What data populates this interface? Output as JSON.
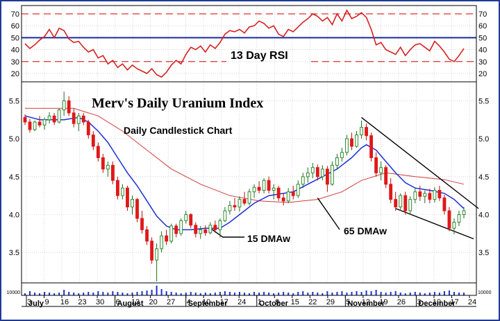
{
  "chart_data": {
    "type": "candlestick",
    "title": "Merv's Daily Uranium Index",
    "subtitle": "Daily Candlestick Chart",
    "annotations": [
      "15 DMAw",
      "65 DMAw"
    ],
    "price_axis": {
      "ticks": [
        3.5,
        4.0,
        4.5,
        5.0,
        5.5
      ],
      "tick_labels": [
        "3.5",
        "4.0",
        "4.5",
        "5.0",
        "5.5"
      ],
      "range": [
        3.1,
        5.75
      ]
    },
    "x_axis": {
      "day_labels": [
        "3",
        "9",
        "16",
        "23",
        "30",
        "6",
        "13",
        "20",
        "27",
        "4",
        "10",
        "17",
        "24",
        "1",
        "9",
        "15",
        "22",
        "29",
        "5",
        "12",
        "19",
        "26",
        "3",
        "10",
        "17",
        "24"
      ],
      "months": [
        "July",
        "August",
        "September",
        "October",
        "November",
        "December"
      ],
      "month_start_index": [
        0,
        5,
        9,
        13,
        18,
        22
      ]
    },
    "rsi": {
      "label": "13 Day RSI",
      "ticks": [
        20,
        30,
        40,
        50,
        60,
        70
      ],
      "tick_labels": [
        "20",
        "30",
        "40",
        "50",
        "60",
        "70"
      ],
      "range": [
        13,
        77
      ],
      "overbought": 70,
      "oversold": 30,
      "midline": 50,
      "points": [
        [
          0,
          45
        ],
        [
          1,
          41
        ],
        [
          2,
          44
        ],
        [
          3,
          48
        ],
        [
          4,
          51
        ],
        [
          5,
          57
        ],
        [
          6,
          50
        ],
        [
          7,
          58
        ],
        [
          8,
          56
        ],
        [
          9,
          49
        ],
        [
          10,
          46
        ],
        [
          11,
          47
        ],
        [
          12,
          42
        ],
        [
          13,
          38
        ],
        [
          14,
          40
        ],
        [
          15,
          33
        ],
        [
          16,
          35
        ],
        [
          17,
          28
        ],
        [
          18,
          31
        ],
        [
          19,
          25
        ],
        [
          20,
          28
        ],
        [
          21,
          23
        ],
        [
          22,
          27
        ],
        [
          23,
          24
        ],
        [
          24,
          22
        ],
        [
          25,
          20
        ],
        [
          26,
          24
        ],
        [
          27,
          19
        ],
        [
          28,
          17
        ],
        [
          29,
          21
        ],
        [
          30,
          27
        ],
        [
          31,
          31
        ],
        [
          32,
          28
        ],
        [
          33,
          36
        ],
        [
          34,
          42
        ],
        [
          35,
          40
        ],
        [
          36,
          43
        ],
        [
          37,
          38
        ],
        [
          38,
          44
        ],
        [
          39,
          41
        ],
        [
          40,
          46
        ],
        [
          41,
          53
        ],
        [
          42,
          56
        ],
        [
          43,
          55
        ],
        [
          44,
          57
        ],
        [
          45,
          54
        ],
        [
          46,
          59
        ],
        [
          47,
          60
        ],
        [
          48,
          64
        ],
        [
          49,
          62
        ],
        [
          50,
          58
        ],
        [
          51,
          60
        ],
        [
          52,
          53
        ],
        [
          53,
          51
        ],
        [
          54,
          57
        ],
        [
          55,
          55
        ],
        [
          56,
          59
        ],
        [
          57,
          63
        ],
        [
          58,
          66
        ],
        [
          59,
          70
        ],
        [
          60,
          68
        ],
        [
          61,
          64
        ],
        [
          62,
          67
        ],
        [
          63,
          61
        ],
        [
          64,
          70
        ],
        [
          65,
          64
        ],
        [
          66,
          73
        ],
        [
          67,
          66
        ],
        [
          68,
          68
        ],
        [
          69,
          71
        ],
        [
          70,
          67
        ],
        [
          71,
          57
        ],
        [
          72,
          44
        ],
        [
          73,
          46
        ],
        [
          74,
          40
        ],
        [
          75,
          38
        ],
        [
          76,
          36
        ],
        [
          77,
          42
        ],
        [
          78,
          35
        ],
        [
          79,
          40
        ],
        [
          80,
          44
        ],
        [
          81,
          45
        ],
        [
          82,
          42
        ],
        [
          83,
          39
        ],
        [
          84,
          47
        ],
        [
          85,
          43
        ],
        [
          86,
          38
        ],
        [
          87,
          32
        ],
        [
          88,
          30
        ],
        [
          89,
          35
        ],
        [
          90,
          41
        ]
      ]
    },
    "volume": {
      "tick_labels": [
        "10000"
      ]
    },
    "candles": [
      [
        5.28,
        5.32,
        5.18,
        5.22
      ],
      [
        5.22,
        5.26,
        5.08,
        5.12
      ],
      [
        5.12,
        5.24,
        5.1,
        5.22
      ],
      [
        5.22,
        5.3,
        5.15,
        5.18
      ],
      [
        5.18,
        5.28,
        5.12,
        5.25
      ],
      [
        5.25,
        5.35,
        5.2,
        5.3
      ],
      [
        5.3,
        5.34,
        5.18,
        5.22
      ],
      [
        5.22,
        5.4,
        5.2,
        5.38
      ],
      [
        5.38,
        5.62,
        5.3,
        5.5
      ],
      [
        5.5,
        5.56,
        5.3,
        5.34
      ],
      [
        5.34,
        5.4,
        5.15,
        5.2
      ],
      [
        5.2,
        5.34,
        5.1,
        5.3
      ],
      [
        5.3,
        5.34,
        5.18,
        5.22
      ],
      [
        5.22,
        5.25,
        5.0,
        5.05
      ],
      [
        5.05,
        5.1,
        4.85,
        4.9
      ],
      [
        4.9,
        4.95,
        4.7,
        4.75
      ],
      [
        4.75,
        4.8,
        4.55,
        4.6
      ],
      [
        4.6,
        4.7,
        4.5,
        4.65
      ],
      [
        4.65,
        4.7,
        4.4,
        4.45
      ],
      [
        4.45,
        4.5,
        4.2,
        4.25
      ],
      [
        4.25,
        4.4,
        4.2,
        4.35
      ],
      [
        4.35,
        4.38,
        4.05,
        4.1
      ],
      [
        4.1,
        4.25,
        4.0,
        4.2
      ],
      [
        4.2,
        4.22,
        3.9,
        3.95
      ],
      [
        3.95,
        4.05,
        3.75,
        3.8
      ],
      [
        3.8,
        3.85,
        3.6,
        3.65
      ],
      [
        3.65,
        3.7,
        3.35,
        3.4
      ],
      [
        3.4,
        3.62,
        3.12,
        3.55
      ],
      [
        3.55,
        3.78,
        3.5,
        3.72
      ],
      [
        3.72,
        3.8,
        3.6,
        3.65
      ],
      [
        3.65,
        3.88,
        3.62,
        3.85
      ],
      [
        3.85,
        3.88,
        3.7,
        3.75
      ],
      [
        3.75,
        3.95,
        3.72,
        3.92
      ],
      [
        3.92,
        4.05,
        3.88,
        4.0
      ],
      [
        4.0,
        4.02,
        3.82,
        3.86
      ],
      [
        3.86,
        3.9,
        3.7,
        3.75
      ],
      [
        3.75,
        3.85,
        3.68,
        3.8
      ],
      [
        3.8,
        3.86,
        3.72,
        3.76
      ],
      [
        3.76,
        3.9,
        3.74,
        3.86
      ],
      [
        3.86,
        3.92,
        3.76,
        3.8
      ],
      [
        3.8,
        3.95,
        3.7,
        3.92
      ],
      [
        3.92,
        4.1,
        3.9,
        4.05
      ],
      [
        4.05,
        4.18,
        4.0,
        4.12
      ],
      [
        4.12,
        4.22,
        4.05,
        4.1
      ],
      [
        4.1,
        4.24,
        4.04,
        4.2
      ],
      [
        4.2,
        4.3,
        4.12,
        4.15
      ],
      [
        4.15,
        4.34,
        4.12,
        4.3
      ],
      [
        4.3,
        4.4,
        4.22,
        4.36
      ],
      [
        4.36,
        4.44,
        4.28,
        4.32
      ],
      [
        4.32,
        4.48,
        4.28,
        4.45
      ],
      [
        4.45,
        4.5,
        4.28,
        4.32
      ],
      [
        4.32,
        4.4,
        4.2,
        4.35
      ],
      [
        4.35,
        4.38,
        4.18,
        4.22
      ],
      [
        4.22,
        4.28,
        4.12,
        4.18
      ],
      [
        4.18,
        4.35,
        4.15,
        4.3
      ],
      [
        4.3,
        4.38,
        4.2,
        4.25
      ],
      [
        4.25,
        4.45,
        4.22,
        4.4
      ],
      [
        4.4,
        4.55,
        4.35,
        4.5
      ],
      [
        4.5,
        4.62,
        4.42,
        4.55
      ],
      [
        4.55,
        4.68,
        4.48,
        4.62
      ],
      [
        4.62,
        4.66,
        4.45,
        4.5
      ],
      [
        4.5,
        4.65,
        4.45,
        4.6
      ],
      [
        4.6,
        4.64,
        4.3,
        4.4
      ],
      [
        4.4,
        4.7,
        4.38,
        4.65
      ],
      [
        4.65,
        4.8,
        4.6,
        4.75
      ],
      [
        4.75,
        4.88,
        4.7,
        4.82
      ],
      [
        4.82,
        5.05,
        4.78,
        5.0
      ],
      [
        5.0,
        5.08,
        4.85,
        4.9
      ],
      [
        4.9,
        5.1,
        4.88,
        5.05
      ],
      [
        5.05,
        5.24,
        5.0,
        5.15
      ],
      [
        5.15,
        5.2,
        4.98,
        5.04
      ],
      [
        5.04,
        5.08,
        4.7,
        4.75
      ],
      [
        4.75,
        4.82,
        4.5,
        4.55
      ],
      [
        4.55,
        4.7,
        4.45,
        4.62
      ],
      [
        4.62,
        4.65,
        4.35,
        4.4
      ],
      [
        4.4,
        4.48,
        4.15,
        4.2
      ],
      [
        4.2,
        4.3,
        4.05,
        4.1
      ],
      [
        4.1,
        4.28,
        4.05,
        4.25
      ],
      [
        4.25,
        4.3,
        4.0,
        4.05
      ],
      [
        4.05,
        4.24,
        4.0,
        4.2
      ],
      [
        4.2,
        4.35,
        4.15,
        4.3
      ],
      [
        4.3,
        4.38,
        4.18,
        4.24
      ],
      [
        4.24,
        4.32,
        4.15,
        4.28
      ],
      [
        4.28,
        4.34,
        4.15,
        4.2
      ],
      [
        4.2,
        4.36,
        4.16,
        4.32
      ],
      [
        4.32,
        4.38,
        4.18,
        4.22
      ],
      [
        4.22,
        4.26,
        4.0,
        4.05
      ],
      [
        4.05,
        4.1,
        3.78,
        3.82
      ],
      [
        3.82,
        3.95,
        3.74,
        3.9
      ],
      [
        3.9,
        4.05,
        3.85,
        4.0
      ],
      [
        4.0,
        4.1,
        3.95,
        4.05
      ]
    ],
    "ma15": [
      [
        0,
        5.3
      ],
      [
        3,
        5.25
      ],
      [
        8,
        5.25
      ],
      [
        11,
        5.28
      ],
      [
        13,
        5.22
      ],
      [
        15,
        5.1
      ],
      [
        17,
        4.95
      ],
      [
        19,
        4.75
      ],
      [
        21,
        4.55
      ],
      [
        23,
        4.38
      ],
      [
        25,
        4.18
      ],
      [
        27,
        3.98
      ],
      [
        29,
        3.85
      ],
      [
        31,
        3.8
      ],
      [
        34,
        3.8
      ],
      [
        37,
        3.82
      ],
      [
        40,
        3.82
      ],
      [
        42,
        3.9
      ],
      [
        44,
        4.0
      ],
      [
        47,
        4.15
      ],
      [
        50,
        4.25
      ],
      [
        53,
        4.28
      ],
      [
        55,
        4.3
      ],
      [
        58,
        4.4
      ],
      [
        61,
        4.5
      ],
      [
        64,
        4.6
      ],
      [
        67,
        4.75
      ],
      [
        69,
        4.88
      ],
      [
        70,
        4.92
      ],
      [
        72,
        4.85
      ],
      [
        74,
        4.7
      ],
      [
        76,
        4.55
      ],
      [
        78,
        4.42
      ],
      [
        80,
        4.35
      ],
      [
        83,
        4.32
      ],
      [
        86,
        4.28
      ],
      [
        88,
        4.2
      ],
      [
        90,
        4.08
      ]
    ],
    "ma65": [
      [
        0,
        5.4
      ],
      [
        10,
        5.4
      ],
      [
        15,
        5.3
      ],
      [
        20,
        5.1
      ],
      [
        25,
        4.85
      ],
      [
        30,
        4.6
      ],
      [
        36,
        4.4
      ],
      [
        42,
        4.25
      ],
      [
        48,
        4.18
      ],
      [
        54,
        4.16
      ],
      [
        60,
        4.2
      ],
      [
        65,
        4.3
      ],
      [
        69,
        4.45
      ],
      [
        74,
        4.55
      ],
      [
        80,
        4.5
      ],
      [
        86,
        4.46
      ],
      [
        90,
        4.4
      ]
    ],
    "trendlines": [
      [
        [
          69,
          5.28
        ],
        [
          93,
          4.08
        ]
      ],
      [
        [
          76,
          4.08
        ],
        [
          92,
          3.68
        ]
      ]
    ],
    "volume_values": [
      3,
      6,
      4,
      3,
      5,
      4,
      3,
      4,
      8,
      5,
      4,
      3,
      4,
      5,
      4,
      6,
      5,
      4,
      6,
      5,
      4,
      3,
      4,
      5,
      6,
      7,
      8,
      14,
      9,
      6,
      5,
      4,
      3,
      4,
      5,
      4,
      3,
      4,
      3,
      4,
      5,
      6,
      5,
      4,
      5,
      4,
      3,
      5,
      4,
      5,
      4,
      3,
      4,
      5,
      4,
      3,
      5,
      6,
      4,
      5,
      4,
      3,
      6,
      4,
      5,
      6,
      4,
      5,
      6,
      5,
      7,
      6,
      8,
      5,
      4,
      5,
      6,
      4,
      3,
      4,
      5,
      4,
      3,
      4,
      5,
      4,
      6,
      7,
      5,
      4,
      4
    ]
  }
}
